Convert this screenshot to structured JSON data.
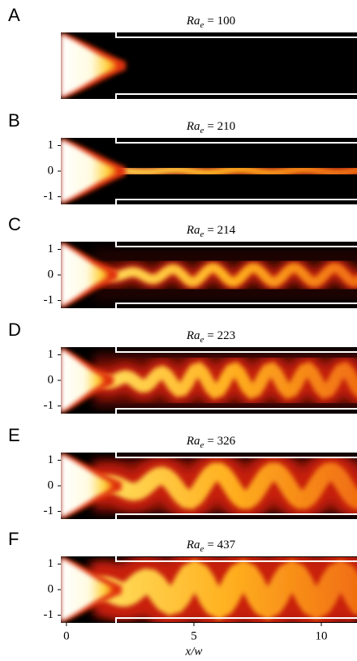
{
  "chart_data": {
    "type": "image-panels",
    "xlabel": "x/w",
    "xlim": [
      -0.22,
      11.4
    ],
    "xticks": [
      0,
      5,
      10
    ],
    "ylim": [
      -1.3,
      1.3
    ],
    "yticks": [
      -1,
      0,
      1
    ],
    "panels": [
      {
        "label": "A",
        "title_var": "Ra",
        "title_sub": "e",
        "title_rest": "= 100",
        "show_yticks": false
      },
      {
        "label": "B",
        "title_var": "Ra",
        "title_sub": "e",
        "title_rest": "= 210",
        "show_yticks": true
      },
      {
        "label": "C",
        "title_var": "Ra",
        "title_sub": "e",
        "title_rest": "= 214",
        "show_yticks": true
      },
      {
        "label": "D",
        "title_var": "Ra",
        "title_sub": "e",
        "title_rest": "= 223",
        "show_yticks": true
      },
      {
        "label": "E",
        "title_var": "Ra",
        "title_sub": "e",
        "title_rest": "= 326",
        "show_yticks": true
      },
      {
        "label": "F",
        "title_var": "Ra",
        "title_sub": "e",
        "title_rest": "= 437",
        "show_yticks": true
      }
    ]
  }
}
